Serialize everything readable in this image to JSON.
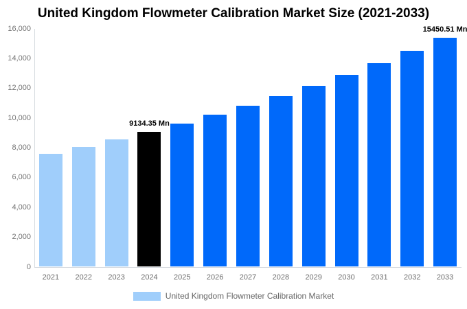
{
  "title": "United Kingdom Flowmeter Calibration Market Size (2021-2033)",
  "chart_data": {
    "type": "bar",
    "title": "United Kingdom Flowmeter Calibration Market Size (2021-2033)",
    "categories": [
      "2021",
      "2022",
      "2023",
      "2024",
      "2025",
      "2026",
      "2027",
      "2028",
      "2029",
      "2030",
      "2031",
      "2032",
      "2033"
    ],
    "series": [
      {
        "name": "United Kingdom Flowmeter Calibration Market",
        "values": [
          7670,
          8130,
          8620,
          9134.35,
          9680,
          10265,
          10880,
          11535,
          12230,
          12965,
          13745,
          14570,
          15450.51
        ]
      }
    ],
    "unit": "Mn",
    "xlabel": "",
    "ylabel": "",
    "ylim": [
      0,
      16000
    ],
    "ytick_step": 2000,
    "ytick_labels": [
      "0",
      "2,000",
      "4,000",
      "6,000",
      "8,000",
      "10,000",
      "12,000",
      "14,000",
      "16,000"
    ],
    "grid": false,
    "legend_position": "bottom",
    "bar_colors": [
      "#A0CEFB",
      "#A0CEFB",
      "#A0CEFB",
      "#000000",
      "#0069FA",
      "#0069FA",
      "#0069FA",
      "#0069FA",
      "#0069FA",
      "#0069FA",
      "#0069FA",
      "#0069FA",
      "#0069FA"
    ],
    "annotations": [
      {
        "category": "2024",
        "text": "9134.35 Mn"
      },
      {
        "category": "2033",
        "text": "15450.51 Mn"
      }
    ]
  },
  "legend": {
    "label": "United Kingdom Flowmeter Calibration Market",
    "swatch_color": "#A0CEFB"
  },
  "colors": {
    "past_bar": "#A0CEFB",
    "highlight_bar": "#000000",
    "forecast_bar": "#0069FA",
    "axis_line": "#d6dbe0",
    "tick_text": "#6e6e6e",
    "title_text": "#000000"
  }
}
